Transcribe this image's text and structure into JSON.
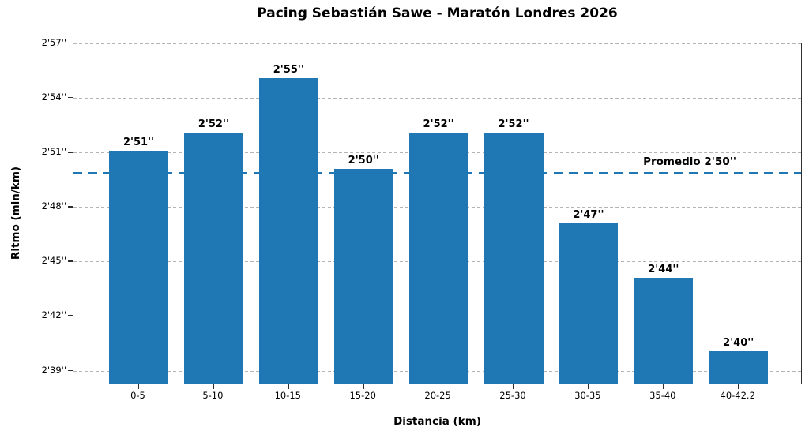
{
  "chart_data": {
    "type": "bar",
    "title": "Pacing Sebastián Sawe - Maratón Londres 2026",
    "xlabel": "Distancia (km)",
    "ylabel": "Ritmo (min/km)",
    "categories": [
      "0-5",
      "5-10",
      "10-15",
      "15-20",
      "20-25",
      "25-30",
      "30-35",
      "35-40",
      "40-42.2"
    ],
    "values_seconds_per_km": [
      171,
      172,
      175,
      170,
      172,
      172,
      167,
      164,
      160
    ],
    "value_labels": [
      "2'51''",
      "2'52''",
      "2'55''",
      "2'50''",
      "2'52''",
      "2'52''",
      "2'47''",
      "2'44''",
      "2'40''"
    ],
    "ylim_seconds": [
      158.2,
      177
    ],
    "ytick_values_seconds": [
      159,
      162,
      165,
      168,
      171,
      174,
      177
    ],
    "ytick_labels": [
      "2'39''",
      "2'42''",
      "2'45''",
      "2'48''",
      "2'51''",
      "2'54''",
      "2'57''"
    ],
    "grid": "horizontal dashed",
    "legend": "none",
    "avg_line": {
      "value_seconds": 169.9,
      "label": "Promedio 2'50''",
      "style": "dashed"
    },
    "bar_color": "#1f77b4",
    "avg_line_color": "#1f77b4",
    "grid_color": "#b4b4b4",
    "background_color": "#ffffff"
  }
}
